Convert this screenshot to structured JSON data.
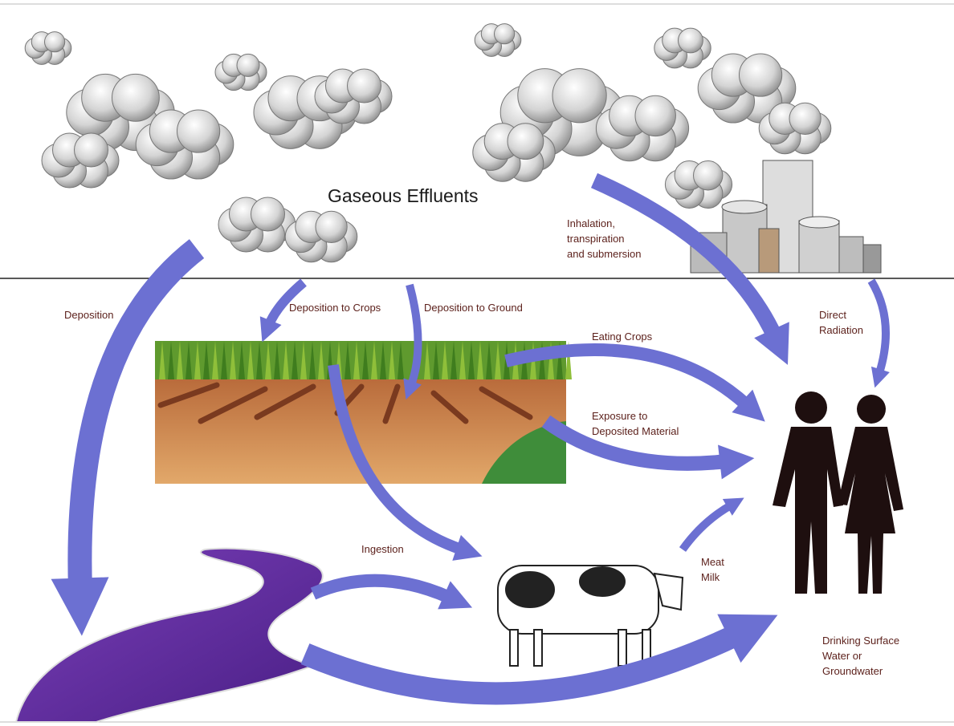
{
  "title": "Gaseous Effluents",
  "labels": [
    {
      "lines": [
        "Inhalation,",
        "transpiration",
        "and submersion"
      ]
    },
    {
      "lines": [
        "Deposition"
      ]
    },
    {
      "lines": [
        "Deposition to Crops"
      ]
    },
    {
      "lines": [
        "Deposition to Ground"
      ]
    },
    {
      "lines": [
        "Eating Crops"
      ]
    },
    {
      "lines": [
        "Direct",
        "Radiation"
      ]
    },
    {
      "lines": [
        "Exposure to",
        "Deposited Material"
      ]
    },
    {
      "lines": [
        "Ingestion"
      ]
    },
    {
      "lines": [
        "Meat",
        "Milk"
      ]
    },
    {
      "lines": [
        "Drinking Surface",
        "Water or",
        "Groundwater"
      ]
    }
  ]
}
